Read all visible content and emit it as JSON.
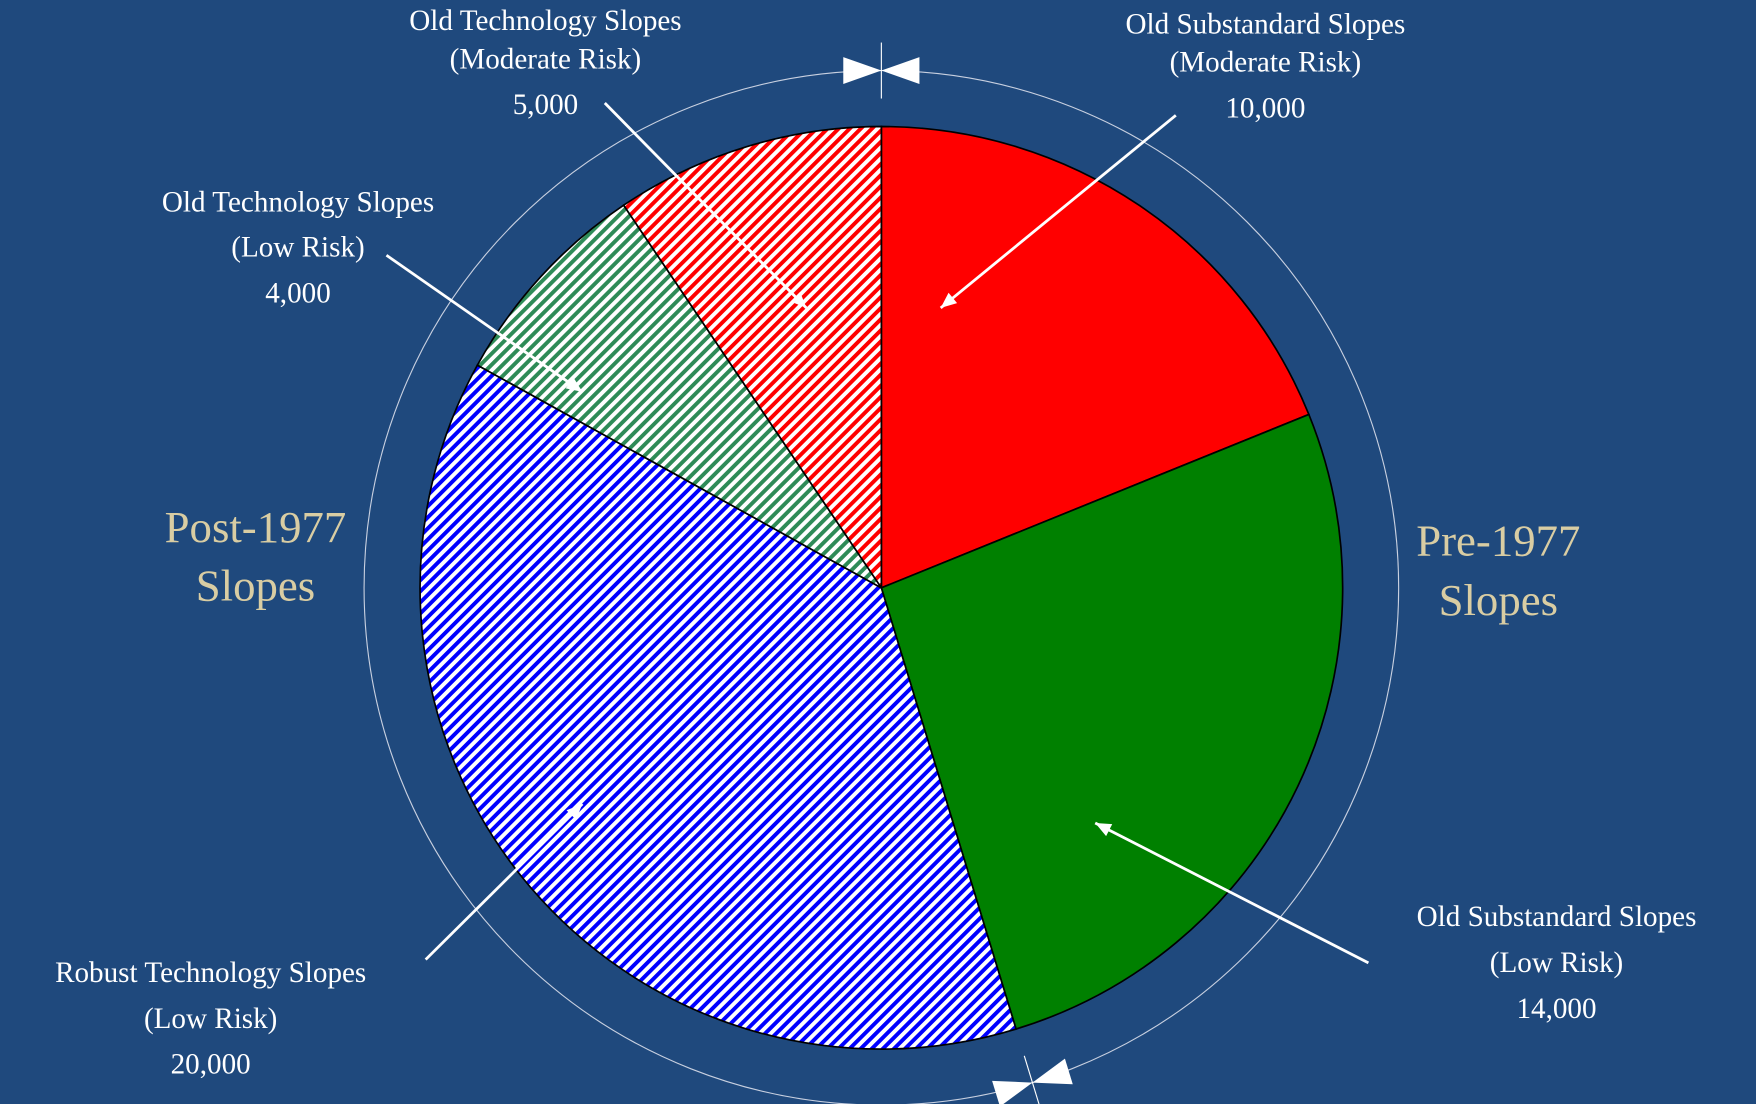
{
  "chart_data": {
    "type": "pie",
    "categories": [
      "Old  Substandard  Slopes",
      "Old  Substandard  Slopes",
      "Robust Technology Slopes",
      "Old  Technology Slopes",
      "Old  Technology Slopes"
    ],
    "risks": [
      "(Moderate Risk)",
      "(Low Risk)",
      "(Low Risk)",
      "(Low Risk)",
      "(Moderate Risk)"
    ],
    "values": [
      10000,
      14000,
      20000,
      4000,
      5000
    ],
    "value_labels": [
      "10,000",
      "14,000",
      "20,000",
      "4,000",
      "5,000"
    ],
    "colors": [
      "#ff0000",
      "#008000",
      "#0000ff",
      "#2e8b57",
      "#ff0000"
    ],
    "hatched": [
      false,
      false,
      true,
      true,
      true
    ],
    "groups": [
      {
        "lines": [
          "Pre-1977",
          "Slopes"
        ]
      },
      {
        "lines": [
          "Post-1977",
          "Slopes"
        ]
      }
    ]
  }
}
